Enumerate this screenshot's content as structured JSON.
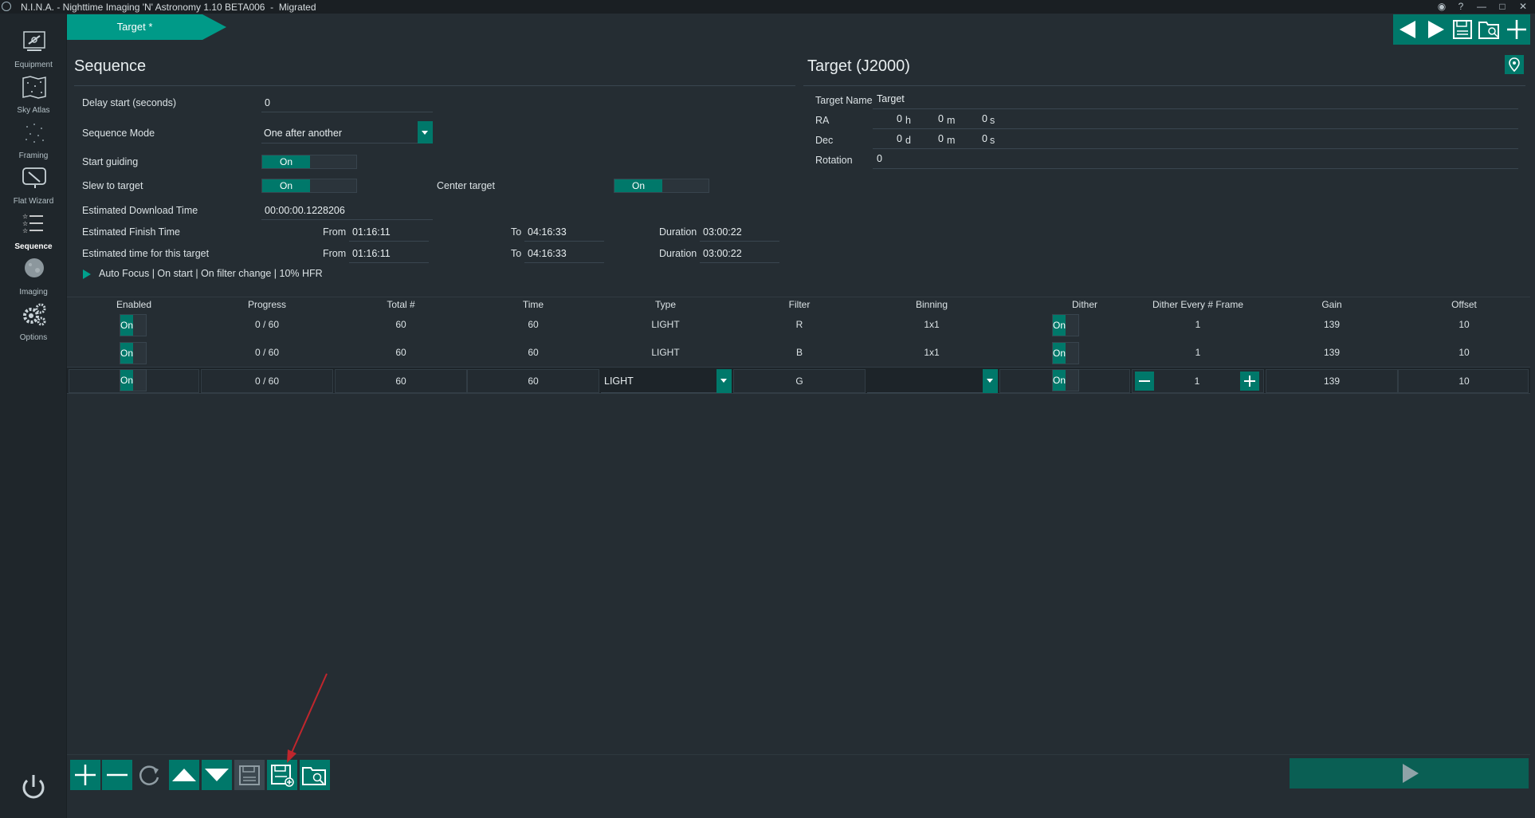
{
  "window": {
    "title": "N.I.N.A. - Nighttime Imaging 'N' Astronomy 1.10 BETA006  -  Migrated",
    "controls": [
      "eye-icon",
      "help-icon",
      "minimize-icon",
      "maximize-icon",
      "close-icon"
    ]
  },
  "nav": {
    "items": [
      {
        "label": "Equipment",
        "icon": "telescope-icon"
      },
      {
        "label": "Sky Atlas",
        "icon": "map-icon"
      },
      {
        "label": "Framing",
        "icon": "stars-icon"
      },
      {
        "label": "Flat Wizard",
        "icon": "flat-wizard-icon"
      },
      {
        "label": "Sequence",
        "icon": "sequence-icon",
        "active": true
      },
      {
        "label": "Imaging",
        "icon": "imaging-icon"
      },
      {
        "label": "Options",
        "icon": "gears-icon"
      }
    ],
    "power_icon": "power-icon"
  },
  "breadcrumb": {
    "label": "Target *"
  },
  "sequence": {
    "title": "Sequence",
    "delay_label": "Delay start (seconds)",
    "delay_value": "0",
    "mode_label": "Sequence Mode",
    "mode_value": "One after another",
    "start_guiding_label": "Start guiding",
    "slew_label": "Slew to target",
    "center_label": "Center target",
    "on_text": "On",
    "download_label": "Estimated Download Time",
    "download_value": "00:00:00.1228206",
    "finish_label": "Estimated Finish Time",
    "target_time_label": "Estimated time for this target",
    "from_label": "From",
    "to_label": "To",
    "duration_label": "Duration",
    "finish_from": "01:16:11",
    "finish_to": "04:16:33",
    "finish_duration": "03:00:22",
    "target_from": "01:16:11",
    "target_to": "04:16:33",
    "target_duration": "03:00:22",
    "autofocus": "Auto Focus | On start | On filter change | 10% HFR"
  },
  "target": {
    "title": "Target (J2000)",
    "name_label": "Target Name",
    "name_value": "Target",
    "ra_label": "RA",
    "dec_label": "Dec",
    "rotation_label": "Rotation",
    "rotation_value": "0",
    "ra": {
      "h": "0",
      "h_unit": "h",
      "m": "0",
      "m_unit": "m",
      "s": "0",
      "s_unit": "s"
    },
    "dec": {
      "d": "0",
      "d_unit": "d",
      "m": "0",
      "m_unit": "m",
      "s": "0",
      "s_unit": "s"
    }
  },
  "table": {
    "headers": {
      "enabled": "Enabled",
      "progress": "Progress",
      "total": "Total #",
      "time": "Time",
      "type": "Type",
      "filter": "Filter",
      "binning": "Binning",
      "dither": "Dither",
      "dither_every": "Dither Every # Frame",
      "gain": "Gain",
      "offset": "Offset"
    },
    "rows": [
      {
        "enabled": "On",
        "progress": "0 / 60",
        "total": "60",
        "time": "60",
        "type": "LIGHT",
        "filter": "R",
        "binning": "1x1",
        "dither": "On",
        "dither_every": "1",
        "gain": "139",
        "offset": "10"
      },
      {
        "enabled": "On",
        "progress": "0 / 60",
        "total": "60",
        "time": "60",
        "type": "LIGHT",
        "filter": "B",
        "binning": "1x1",
        "dither": "On",
        "dither_every": "1",
        "gain": "139",
        "offset": "10"
      },
      {
        "enabled": "On",
        "progress": "0 / 60",
        "total": "60",
        "time": "60",
        "type": "LIGHT",
        "filter": "G",
        "binning": "",
        "dither": "On",
        "dither_every": "1",
        "gain": "139",
        "offset": "10"
      }
    ]
  },
  "colors": {
    "accent": "#00786a",
    "accent_light": "#009a88",
    "background": "#252d33",
    "annotation_arrow": "#c0262d"
  }
}
